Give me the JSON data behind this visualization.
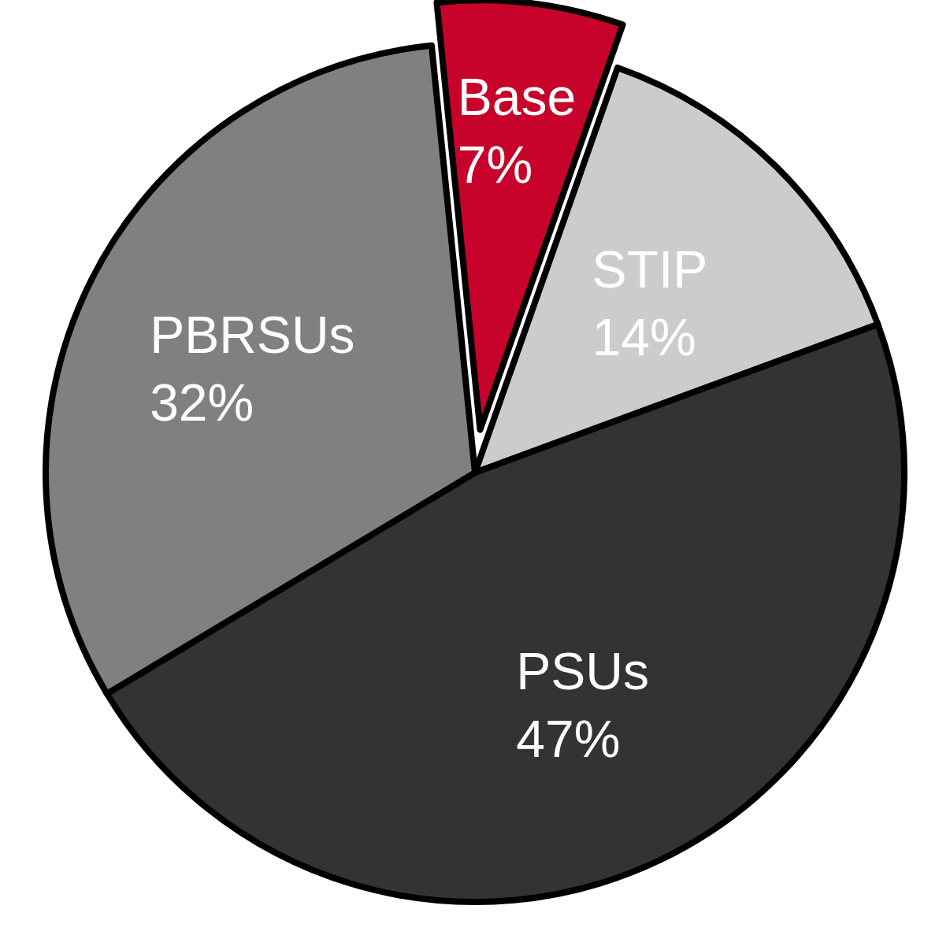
{
  "chart_data": {
    "type": "pie",
    "categories": [
      "Base",
      "STIP",
      "PSUs",
      "PBRSUs"
    ],
    "values": [
      7,
      14,
      47,
      32
    ],
    "colors": [
      "#c8032b",
      "#cccccc",
      "#333333",
      "#808080"
    ],
    "value_labels": [
      "7%",
      "14%",
      "47%",
      "32%"
    ]
  }
}
